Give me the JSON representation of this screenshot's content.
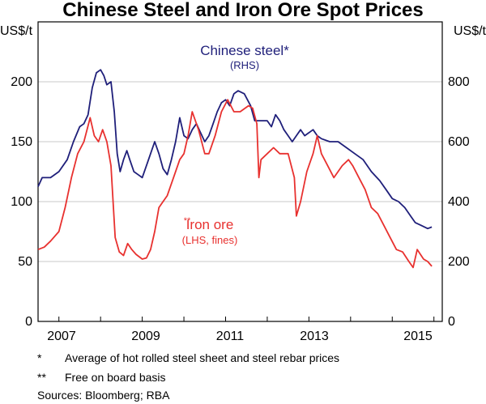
{
  "chart_data": {
    "type": "line",
    "title": "Chinese Steel and Iron Ore Spot Prices",
    "left_axis": {
      "unit": "US$/t",
      "ticks": [
        "0",
        "50",
        "100",
        "150",
        "200"
      ],
      "ylim": [
        0,
        250
      ]
    },
    "right_axis": {
      "unit": "US$/t",
      "ticks": [
        "0",
        "200",
        "400",
        "600",
        "800"
      ],
      "ylim": [
        0,
        1000
      ]
    },
    "x_axis": {
      "range": [
        2006.5,
        2016.2
      ],
      "labels": [
        "2007",
        "2009",
        "2011",
        "2013",
        "2015"
      ]
    },
    "series": [
      {
        "name": "Chinese steel*",
        "sublabel": "(RHS)",
        "axis": "right",
        "color": "#1f1f7a",
        "points": [
          [
            2006.5,
            450
          ],
          [
            2006.6,
            480
          ],
          [
            2006.8,
            480
          ],
          [
            2007.0,
            500
          ],
          [
            2007.2,
            540
          ],
          [
            2007.35,
            600
          ],
          [
            2007.5,
            650
          ],
          [
            2007.6,
            660
          ],
          [
            2007.7,
            690
          ],
          [
            2007.8,
            780
          ],
          [
            2007.9,
            830
          ],
          [
            2008.0,
            840
          ],
          [
            2008.08,
            820
          ],
          [
            2008.15,
            790
          ],
          [
            2008.25,
            800
          ],
          [
            2008.33,
            700
          ],
          [
            2008.4,
            560
          ],
          [
            2008.47,
            500
          ],
          [
            2008.55,
            540
          ],
          [
            2008.63,
            570
          ],
          [
            2008.7,
            540
          ],
          [
            2008.8,
            500
          ],
          [
            2008.9,
            490
          ],
          [
            2009.0,
            480
          ],
          [
            2009.1,
            520
          ],
          [
            2009.2,
            560
          ],
          [
            2009.3,
            600
          ],
          [
            2009.4,
            560
          ],
          [
            2009.5,
            510
          ],
          [
            2009.6,
            490
          ],
          [
            2009.7,
            540
          ],
          [
            2009.8,
            600
          ],
          [
            2009.9,
            680
          ],
          [
            2010.0,
            620
          ],
          [
            2010.1,
            610
          ],
          [
            2010.2,
            640
          ],
          [
            2010.3,
            660
          ],
          [
            2010.4,
            630
          ],
          [
            2010.5,
            600
          ],
          [
            2010.6,
            620
          ],
          [
            2010.7,
            660
          ],
          [
            2010.8,
            700
          ],
          [
            2010.9,
            730
          ],
          [
            2011.0,
            740
          ],
          [
            2011.1,
            720
          ],
          [
            2011.2,
            760
          ],
          [
            2011.3,
            770
          ],
          [
            2011.45,
            760
          ],
          [
            2011.6,
            720
          ],
          [
            2011.7,
            670
          ],
          [
            2011.85,
            670
          ],
          [
            2012.0,
            670
          ],
          [
            2012.1,
            650
          ],
          [
            2012.2,
            690
          ],
          [
            2012.3,
            670
          ],
          [
            2012.4,
            640
          ],
          [
            2012.5,
            620
          ],
          [
            2012.6,
            600
          ],
          [
            2012.7,
            620
          ],
          [
            2012.8,
            640
          ],
          [
            2012.9,
            620
          ],
          [
            2013.0,
            630
          ],
          [
            2013.1,
            640
          ],
          [
            2013.2,
            620
          ],
          [
            2013.3,
            610
          ],
          [
            2013.5,
            600
          ],
          [
            2013.7,
            600
          ],
          [
            2013.9,
            580
          ],
          [
            2014.1,
            560
          ],
          [
            2014.3,
            540
          ],
          [
            2014.5,
            500
          ],
          [
            2014.7,
            470
          ],
          [
            2014.85,
            440
          ],
          [
            2015.0,
            410
          ],
          [
            2015.15,
            400
          ],
          [
            2015.3,
            380
          ],
          [
            2015.45,
            350
          ],
          [
            2015.55,
            330
          ],
          [
            2015.7,
            320
          ],
          [
            2015.85,
            310
          ],
          [
            2015.95,
            315
          ]
        ]
      },
      {
        "name": "Iron ore",
        "sublabel": "(LHS, fines)",
        "axis": "left",
        "color": "#e8312f",
        "points": [
          [
            2006.5,
            60
          ],
          [
            2006.65,
            62
          ],
          [
            2006.8,
            67
          ],
          [
            2007.0,
            75
          ],
          [
            2007.15,
            95
          ],
          [
            2007.3,
            120
          ],
          [
            2007.45,
            140
          ],
          [
            2007.6,
            150
          ],
          [
            2007.75,
            170
          ],
          [
            2007.85,
            155
          ],
          [
            2007.95,
            150
          ],
          [
            2008.05,
            160
          ],
          [
            2008.15,
            150
          ],
          [
            2008.25,
            130
          ],
          [
            2008.35,
            70
          ],
          [
            2008.45,
            58
          ],
          [
            2008.55,
            55
          ],
          [
            2008.65,
            65
          ],
          [
            2008.75,
            60
          ],
          [
            2008.85,
            56
          ],
          [
            2009.0,
            52
          ],
          [
            2009.1,
            53
          ],
          [
            2009.2,
            60
          ],
          [
            2009.3,
            75
          ],
          [
            2009.4,
            95
          ],
          [
            2009.5,
            100
          ],
          [
            2009.6,
            105
          ],
          [
            2009.75,
            120
          ],
          [
            2009.9,
            135
          ],
          [
            2010.0,
            140
          ],
          [
            2010.1,
            155
          ],
          [
            2010.2,
            175
          ],
          [
            2010.35,
            160
          ],
          [
            2010.5,
            140
          ],
          [
            2010.6,
            140
          ],
          [
            2010.75,
            155
          ],
          [
            2010.9,
            175
          ],
          [
            2011.05,
            185
          ],
          [
            2011.2,
            175
          ],
          [
            2011.35,
            175
          ],
          [
            2011.55,
            180
          ],
          [
            2011.65,
            178
          ],
          [
            2011.75,
            165
          ],
          [
            2011.8,
            120
          ],
          [
            2011.85,
            135
          ],
          [
            2012.0,
            140
          ],
          [
            2012.15,
            145
          ],
          [
            2012.3,
            140
          ],
          [
            2012.5,
            140
          ],
          [
            2012.65,
            120
          ],
          [
            2012.7,
            88
          ],
          [
            2012.8,
            100
          ],
          [
            2012.95,
            125
          ],
          [
            2013.1,
            140
          ],
          [
            2013.2,
            155
          ],
          [
            2013.3,
            140
          ],
          [
            2013.45,
            130
          ],
          [
            2013.6,
            120
          ],
          [
            2013.8,
            130
          ],
          [
            2013.95,
            135
          ],
          [
            2014.05,
            130
          ],
          [
            2014.2,
            120
          ],
          [
            2014.35,
            110
          ],
          [
            2014.5,
            95
          ],
          [
            2014.65,
            90
          ],
          [
            2014.8,
            80
          ],
          [
            2014.95,
            70
          ],
          [
            2015.1,
            60
          ],
          [
            2015.25,
            58
          ],
          [
            2015.4,
            50
          ],
          [
            2015.5,
            45
          ],
          [
            2015.6,
            60
          ],
          [
            2015.75,
            52
          ],
          [
            2015.85,
            50
          ],
          [
            2015.95,
            46
          ]
        ]
      }
    ],
    "annotations": {
      "steel_label": "Chinese steel*",
      "steel_sublabel": "(RHS)",
      "ore_label": "Iron ore",
      "ore_marker": "**",
      "ore_sublabel": "(LHS, fines)"
    }
  },
  "footnotes": [
    {
      "marker": "*",
      "text": "Average of hot rolled steel sheet and steel rebar prices"
    },
    {
      "marker": "**",
      "text": "Free on board basis"
    }
  ],
  "sources": "Sources:  Bloomberg; RBA"
}
